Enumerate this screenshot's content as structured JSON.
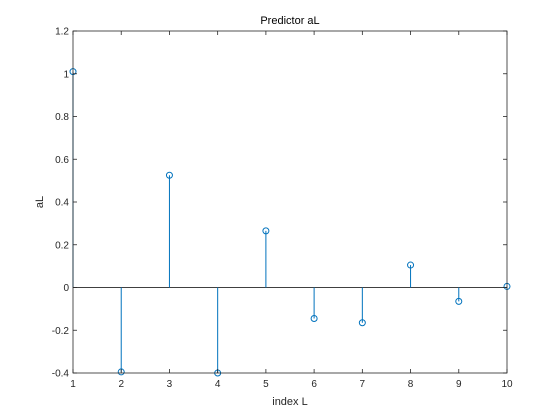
{
  "chart_data": {
    "type": "stem",
    "title": "Predictor aL",
    "xlabel": "index L",
    "ylabel": "aL",
    "xlim": [
      1,
      10
    ],
    "ylim": [
      -0.4,
      1.2
    ],
    "xticks": [
      1,
      2,
      3,
      4,
      5,
      6,
      7,
      8,
      9,
      10
    ],
    "yticks": [
      -0.4,
      -0.2,
      0,
      0.2,
      0.4,
      0.6,
      0.8,
      1,
      1.2
    ],
    "xtick_labels": [
      "1",
      "2",
      "3",
      "4",
      "5",
      "6",
      "7",
      "8",
      "9",
      "10"
    ],
    "ytick_labels": [
      "-0.4",
      "-0.2",
      "0",
      "0.2",
      "0.4",
      "0.6",
      "0.8",
      "1",
      "1.2"
    ],
    "grid": false,
    "series": [
      {
        "x": [
          1,
          2,
          3,
          4,
          5,
          6,
          7,
          8,
          9,
          10
        ],
        "values": [
          1.01,
          -0.395,
          0.525,
          -0.4,
          0.265,
          -0.145,
          -0.165,
          0.105,
          -0.065,
          0.005
        ]
      }
    ],
    "colors": {
      "stem": "#0072bd",
      "axis": "#262626",
      "baseline": "#000000"
    }
  }
}
